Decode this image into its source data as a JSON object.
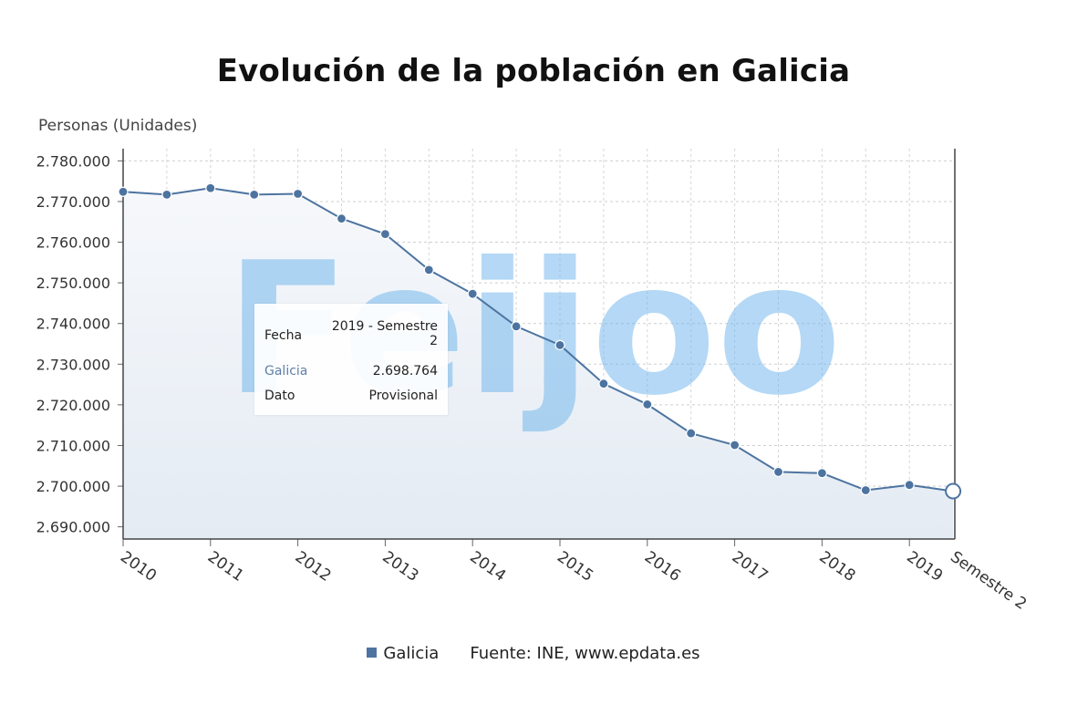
{
  "chart_data": {
    "type": "area",
    "title": "Evolución de la población en Galicia",
    "ylabel": "Personas (Unidades)",
    "ylim": [
      2687000,
      2783000
    ],
    "y_ticks": [
      "2.690.000",
      "2.700.000",
      "2.710.000",
      "2.720.000",
      "2.730.000",
      "2.740.000",
      "2.750.000",
      "2.760.000",
      "2.770.000",
      "2.780.000"
    ],
    "y_tick_values": [
      2690000,
      2700000,
      2710000,
      2720000,
      2730000,
      2740000,
      2750000,
      2760000,
      2770000,
      2780000
    ],
    "x_ticks": [
      "2010",
      "2011",
      "2012",
      "2013",
      "2014",
      "2015",
      "2016",
      "2017",
      "2018",
      "2019",
      "Semestre 2"
    ],
    "x": [
      "2010 - Semestre 1",
      "2010 - Semestre 2",
      "2011 - Semestre 1",
      "2011 - Semestre 2",
      "2012 - Semestre 1",
      "2012 - Semestre 2",
      "2013 - Semestre 1",
      "2013 - Semestre 2",
      "2014 - Semestre 1",
      "2014 - Semestre 2",
      "2015 - Semestre 1",
      "2015 - Semestre 2",
      "2016 - Semestre 1",
      "2016 - Semestre 2",
      "2017 - Semestre 1",
      "2017 - Semestre 2",
      "2018 - Semestre 1",
      "2018 - Semestre 2",
      "2019 - Semestre 1",
      "2019 - Semestre 2"
    ],
    "series": [
      {
        "name": "Galicia",
        "color": "#4d74a0",
        "values": [
          2772400,
          2771700,
          2773300,
          2771700,
          2771900,
          2765800,
          2762000,
          2753200,
          2747300,
          2739300,
          2734700,
          2725200,
          2720100,
          2713000,
          2710100,
          2703500,
          2703200,
          2699000,
          2700300,
          2698764
        ]
      }
    ],
    "grid": true,
    "legend_position": "bottom-center"
  },
  "tooltip": {
    "fecha_label": "Fecha",
    "fecha_value_line1": "2019 - Semestre",
    "fecha_value_line2": "2",
    "series_label": "Galicia",
    "series_value": "2.698.764",
    "dato_label": "Dato",
    "dato_value": "Provisional"
  },
  "legend": {
    "series_name": "Galicia",
    "source": "Fuente: INE, www.epdata.es"
  },
  "watermark": "Feijoo"
}
